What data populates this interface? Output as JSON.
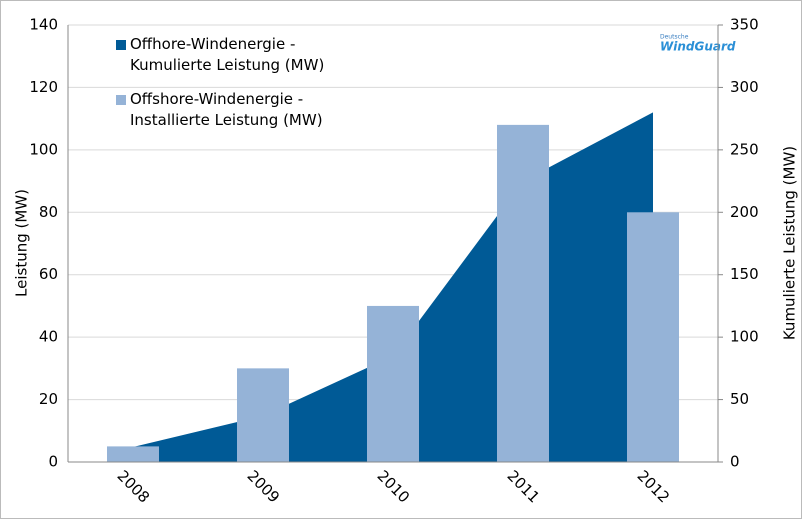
{
  "chart_data": {
    "type": "bar",
    "categories": [
      "2008",
      "2009",
      "2010",
      "2011",
      "2012"
    ],
    "series": [
      {
        "name": "Offhore-Windenergie - Kumulierte Leistung (MW)",
        "type": "area",
        "axis": "y2",
        "color": "#005a96",
        "values": [
          12,
          37,
          85,
          225,
          280
        ]
      },
      {
        "name": "Offshore-Windenergie - Installierte Leistung (MW)",
        "type": "bar",
        "color": "#95b3d7",
        "values": [
          5,
          30,
          50,
          108,
          80
        ]
      }
    ],
    "ylabel": "Leistung (MW)",
    "y2label": "Kumulierte Leistung (MW)",
    "ylim": [
      0,
      140
    ],
    "yticks": [
      0,
      20,
      40,
      60,
      80,
      100,
      120,
      140
    ],
    "y2lim": [
      0,
      350
    ],
    "y2ticks": [
      0,
      50,
      100,
      150,
      200,
      250,
      300,
      350
    ],
    "grid": true,
    "legend": "upper-left",
    "logo": {
      "line1": "Deutsche",
      "line2": "WindGuard"
    }
  }
}
